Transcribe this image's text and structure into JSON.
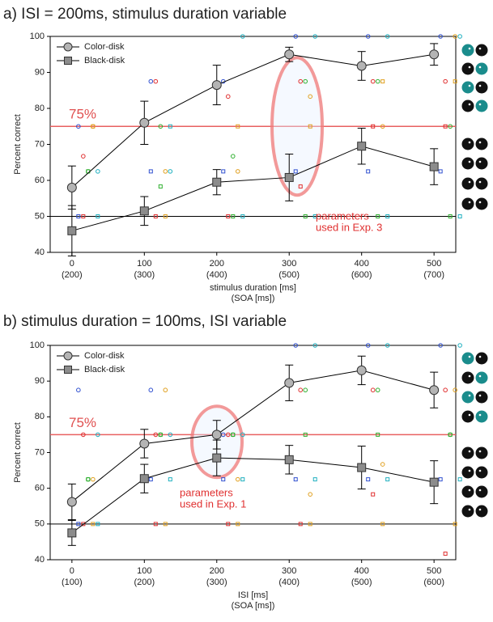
{
  "chart_data": [
    {
      "type": "line",
      "title": "a) ISI = 200ms, stimulus duration variable",
      "x_label": "stimulus duration [ms]",
      "x_label_secondary": "(SOA [ms])",
      "y_label": "Percent correct",
      "x": [
        0,
        100,
        200,
        300,
        400,
        500
      ],
      "xticks": [
        0,
        100,
        200,
        300,
        400,
        500
      ],
      "xticks_secondary": [
        "(200)",
        "(300)",
        "(400)",
        "(500)",
        "(600)",
        "(700)"
      ],
      "xlim": [
        -30,
        530
      ],
      "ylim": [
        40,
        100
      ],
      "yticks": [
        40,
        50,
        60,
        70,
        80,
        90,
        100
      ],
      "series": [
        {
          "name": "Color-disk",
          "marker": "circle",
          "color": "#b4b4b4",
          "values": [
            58,
            76,
            86.5,
            95,
            91.8,
            95
          ],
          "errors": [
            6,
            6,
            5.5,
            2,
            4,
            3
          ],
          "subjects": [
            [
              75,
              66.7,
              62.5,
              75,
              62.5
            ],
            [
              87.5,
              87.5,
              75,
              62.5,
              62.5
            ],
            [
              87.5,
              83.3,
              66.7,
              62.5,
              100
            ],
            [
              100,
              87.5,
              87.5,
              83.3,
              100
            ],
            [
              100,
              87.5,
              87.5,
              75,
              100
            ],
            [
              100,
              87.5,
              75,
              100,
              100
            ]
          ]
        },
        {
          "name": "Black-disk",
          "marker": "square",
          "color": "#8c8c8c",
          "values": [
            46,
            51.5,
            59.5,
            60.8,
            69.5,
            63.8
          ],
          "errors": [
            7,
            4,
            3.5,
            6.5,
            5,
            5
          ],
          "subjects": [
            [
              50,
              50,
              62.5,
              75,
              50
            ],
            [
              62.5,
              50,
              58.3,
              50,
              75
            ],
            [
              62.5,
              50,
              50,
              75,
              50
            ],
            [
              62.5,
              58.3,
              50,
              75,
              50
            ],
            [
              62.5,
              75,
              50,
              87.5,
              50
            ],
            [
              62.5,
              75,
              50,
              87.5,
              50
            ]
          ]
        }
      ],
      "subject_colors": [
        "#3050d0",
        "#e03030",
        "#30b030",
        "#e0a020",
        "#20b0c0"
      ],
      "reference_lines": [
        {
          "value": 75,
          "label": "75%",
          "color": "#e86060"
        },
        {
          "value": 50,
          "color": "#000000"
        }
      ],
      "annotation": [
        "parameters",
        "used in Exp. 3"
      ]
    },
    {
      "type": "line",
      "title": "b) stimulus duration = 100ms, ISI variable",
      "x_label": "ISI [ms]",
      "x_label_secondary": "(SOA [ms])",
      "y_label": "Percent correct",
      "x": [
        0,
        100,
        200,
        300,
        400,
        500
      ],
      "xticks": [
        0,
        100,
        200,
        300,
        400,
        500
      ],
      "xticks_secondary": [
        "(100)",
        "(200)",
        "(300)",
        "(400)",
        "(500)",
        "(600)"
      ],
      "xlim": [
        -30,
        530
      ],
      "ylim": [
        40,
        100
      ],
      "yticks": [
        40,
        50,
        60,
        70,
        80,
        90,
        100
      ],
      "series": [
        {
          "name": "Color-disk",
          "marker": "circle",
          "color": "#b4b4b4",
          "values": [
            56.2,
            72.5,
            75,
            89.5,
            93,
            87.5
          ],
          "errors": [
            5,
            4,
            4,
            5,
            4,
            5
          ],
          "subjects": [
            [
              87.5,
              75,
              62.5,
              62.5,
              75
            ],
            [
              87.5,
              75,
              75,
              87.5,
              75
            ],
            [
              75,
              75,
              75,
              62.5,
              75
            ],
            [
              100,
              87.5,
              87.5,
              58.3,
              100
            ],
            [
              100,
              87.5,
              87.5,
              66.7,
              100
            ],
            [
              100,
              87.5,
              75,
              87.5,
              100
            ]
          ]
        },
        {
          "name": "Black-disk",
          "marker": "square",
          "color": "#8c8c8c",
          "values": [
            47.5,
            62.7,
            68.5,
            68,
            65.8,
            61.7
          ],
          "errors": [
            3.5,
            4,
            5,
            4,
            6,
            6
          ],
          "subjects": [
            [
              50,
              50,
              62.5,
              50,
              50
            ],
            [
              62.5,
              50,
              75,
              50,
              62.5
            ],
            [
              62.5,
              50,
              75,
              50,
              62.5
            ],
            [
              62.5,
              50,
              75,
              50,
              62.5
            ],
            [
              62.5,
              58.3,
              75,
              50,
              62.5
            ],
            [
              62.5,
              41.7,
              75,
              50,
              62.5
            ]
          ]
        }
      ],
      "subject_colors": [
        "#3050d0",
        "#e03030",
        "#30b030",
        "#e0a020",
        "#20b0c0"
      ],
      "reference_lines": [
        {
          "value": 75,
          "label": "75%",
          "color": "#e86060"
        },
        {
          "value": 50,
          "color": "#000000"
        }
      ],
      "annotation": [
        "parameters",
        "used in Exp. 1"
      ]
    }
  ]
}
